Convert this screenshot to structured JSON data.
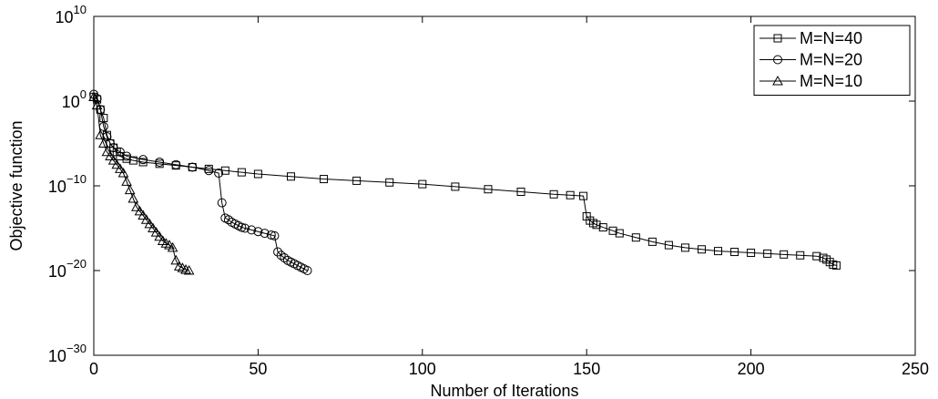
{
  "chart_data": {
    "type": "line",
    "title": "",
    "xlabel": "Number of Iterations",
    "ylabel": "Objective function",
    "x_ticks": [
      "0",
      "50",
      "100",
      "150",
      "200",
      "250"
    ],
    "y_ticks": [
      {
        "base": "10",
        "exp": "10",
        "value": 10
      },
      {
        "base": "10",
        "exp": "0",
        "value": 0
      },
      {
        "base": "10",
        "exp": "−10",
        "value": -10
      },
      {
        "base": "10",
        "exp": "−20",
        "value": -20
      },
      {
        "base": "10",
        "exp": "−30",
        "value": -30
      }
    ],
    "xlim": [
      0,
      250
    ],
    "ylim_log10": [
      -30,
      10
    ],
    "y_scale": "log",
    "grid": false,
    "legend_position": "top-right",
    "series": [
      {
        "name": "M=N=40",
        "marker": "square",
        "x": [
          0,
          1,
          2,
          3,
          4,
          5,
          6,
          7,
          8,
          10,
          12,
          15,
          20,
          25,
          30,
          35,
          40,
          45,
          50,
          60,
          70,
          80,
          90,
          100,
          110,
          120,
          130,
          140,
          145,
          149,
          150,
          151,
          152,
          153,
          155,
          158,
          160,
          165,
          170,
          175,
          180,
          185,
          190,
          195,
          200,
          205,
          210,
          215,
          220,
          222,
          223,
          224,
          225,
          226
        ],
        "log10_y": [
          0.5,
          0.2,
          -1,
          -2,
          -4,
          -5,
          -5.5,
          -6,
          -6.5,
          -6.8,
          -7,
          -7.2,
          -7.4,
          -7.6,
          -7.8,
          -8,
          -8.2,
          -8.4,
          -8.6,
          -8.9,
          -9.2,
          -9.4,
          -9.6,
          -9.8,
          -10.1,
          -10.4,
          -10.7,
          -11,
          -11.1,
          -11.2,
          -13.6,
          -14.1,
          -14.4,
          -14.6,
          -14.9,
          -15.3,
          -15.6,
          -16.1,
          -16.6,
          -17,
          -17.3,
          -17.5,
          -17.7,
          -17.8,
          -17.9,
          -18,
          -18.1,
          -18.2,
          -18.3,
          -18.5,
          -18.7,
          -19,
          -19.3,
          -19.4
        ]
      },
      {
        "name": "M=N=20",
        "marker": "circle",
        "x": [
          0,
          1,
          2,
          3,
          4,
          5,
          6,
          8,
          10,
          15,
          20,
          25,
          30,
          35,
          38,
          39,
          40,
          41,
          42,
          43,
          44,
          45,
          46,
          48,
          50,
          52,
          54,
          55,
          56,
          57,
          58,
          59,
          60,
          61,
          62,
          63,
          64,
          65
        ],
        "log10_y": [
          0.8,
          0.3,
          -1,
          -3,
          -4.2,
          -5,
          -5.5,
          -6,
          -6.5,
          -6.9,
          -7.2,
          -7.5,
          -7.8,
          -8.2,
          -8.5,
          -12,
          -13.8,
          -14,
          -14.3,
          -14.5,
          -14.7,
          -14.9,
          -15,
          -15.2,
          -15.4,
          -15.6,
          -15.8,
          -15.9,
          -17.8,
          -18.2,
          -18.5,
          -18.8,
          -19,
          -19.2,
          -19.4,
          -19.6,
          -19.8,
          -20
        ]
      },
      {
        "name": "M=N=10",
        "marker": "triangle",
        "x": [
          0,
          1,
          2,
          3,
          4,
          5,
          6,
          7,
          8,
          9,
          10,
          11,
          12,
          13,
          14,
          15,
          16,
          17,
          18,
          19,
          20,
          21,
          22,
          23,
          24,
          25,
          26,
          27,
          28,
          29
        ],
        "log10_y": [
          0.5,
          -0.5,
          -4,
          -5,
          -6,
          -6.5,
          -7,
          -7.5,
          -8,
          -8.5,
          -9.5,
          -10.5,
          -11.5,
          -12.5,
          -13,
          -13.5,
          -14,
          -14.5,
          -15,
          -15.5,
          -16,
          -16.5,
          -16.8,
          -17,
          -17.3,
          -18.8,
          -19.5,
          -19.7,
          -19.9,
          -20
        ]
      }
    ]
  }
}
